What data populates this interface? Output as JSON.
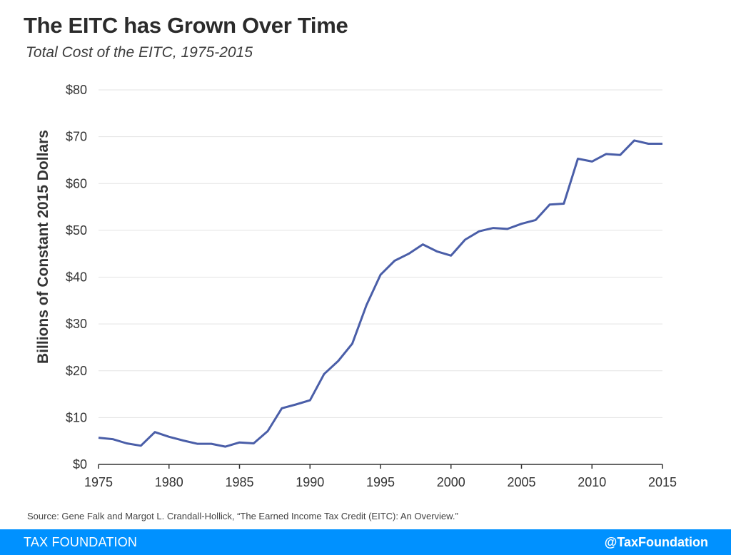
{
  "header": {
    "title": "The EITC has Grown Over Time",
    "subtitle": "Total Cost of the EITC, 1975-2015"
  },
  "source": "Source: Gene Falk and Margot L. Crandall-Hollick, “The Earned Income Tax Credit (EITC): An Overview.”",
  "footer": {
    "brand": "TAX FOUNDATION",
    "handle": "@TaxFoundation"
  },
  "colors": {
    "line": "#4a5ea8",
    "grid": "#e3e3e3",
    "axis": "#333333",
    "footer_bg": "#0091ff"
  },
  "chart_data": {
    "type": "line",
    "title": "The EITC has Grown Over Time",
    "subtitle": "Total Cost of the EITC, 1975-2015",
    "xlabel": "",
    "ylabel": "Billions of Constant 2015 Dollars",
    "xlim": [
      1975,
      2015
    ],
    "ylim": [
      0,
      80
    ],
    "x_ticks": [
      "1975",
      "1980",
      "1985",
      "1990",
      "1995",
      "2000",
      "2005",
      "2010",
      "2015"
    ],
    "y_ticks": [
      "$0",
      "$10",
      "$20",
      "$30",
      "$40",
      "$50",
      "$60",
      "$70",
      "$80"
    ],
    "grid": "horizontal",
    "legend": "none",
    "series": [
      {
        "x": [
          1975,
          1976,
          1977,
          1978,
          1979,
          1980,
          1981,
          1982,
          1983,
          1984,
          1985,
          1986,
          1987,
          1988,
          1989,
          1990,
          1991,
          1992,
          1993,
          1994,
          1995,
          1996,
          1997,
          1998,
          1999,
          2000,
          2001,
          2002,
          2003,
          2004,
          2005,
          2006,
          2007,
          2008,
          2009,
          2010,
          2011,
          2012,
          2013,
          2014,
          2015
        ],
        "values": [
          5.7,
          5.4,
          4.5,
          4.0,
          6.9,
          5.9,
          5.1,
          4.4,
          4.4,
          3.8,
          4.7,
          4.5,
          7.1,
          12.0,
          12.8,
          13.7,
          19.3,
          22.1,
          25.8,
          34.0,
          40.5,
          43.5,
          45.0,
          47.0,
          45.5,
          44.6,
          48.0,
          49.8,
          50.5,
          50.3,
          51.4,
          52.2,
          55.5,
          55.7,
          65.3,
          64.7,
          66.3,
          66.1,
          69.2,
          68.5,
          68.5
        ]
      }
    ]
  }
}
